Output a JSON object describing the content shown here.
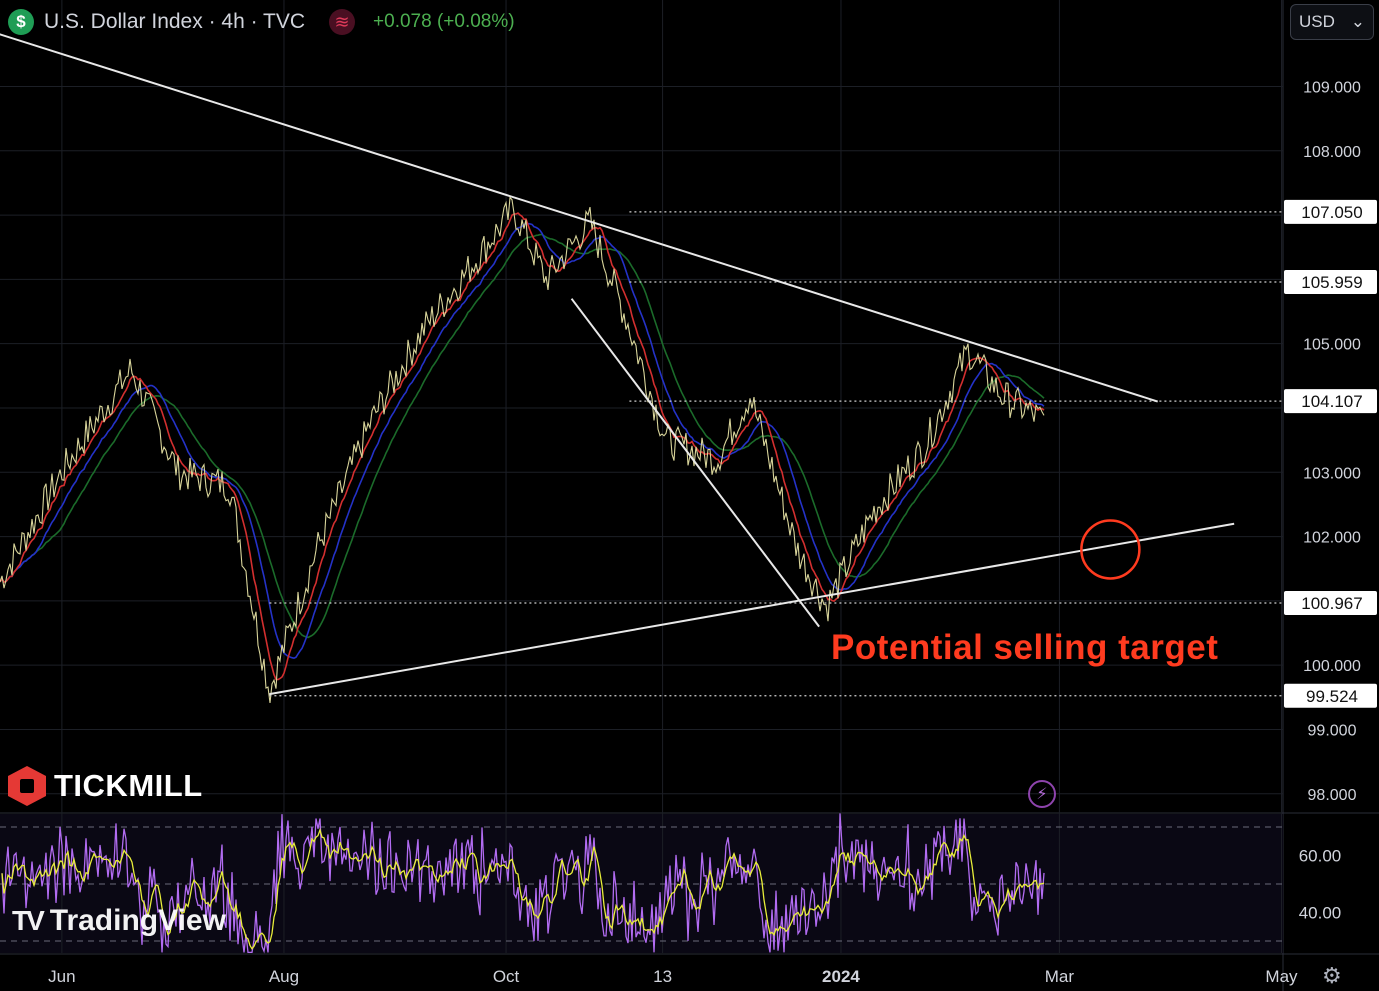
{
  "header": {
    "symbol_icon": "dollar-icon",
    "title": "U.S. Dollar Index · 4h · TVC",
    "indicator_icon": "wave-icon",
    "change": "+0.078 (+0.08%)"
  },
  "currency_select": {
    "value": "USD",
    "icon": "chevron-down-icon"
  },
  "branding": {
    "broker": "TICKMILL",
    "platform": "TradingView"
  },
  "annotation": "Potential selling target",
  "colors": {
    "background": "#000000",
    "grid": "#1c1f26",
    "price": "#d8d49a",
    "ma_fast": "#d32f2f",
    "ma_mid": "#2432c8",
    "ma_slow": "#1b6b2a",
    "trendline": "#e8e8e8",
    "annotation": "#ff3b1f",
    "rsi_line": "#b26cf2",
    "rsi_signal": "#e8ee3a",
    "up_change": "#4caf50"
  },
  "chart_data": [
    {
      "type": "line",
      "name": "price",
      "x_ticks": [
        "Jun",
        "Aug",
        "Oct",
        "13",
        "2024",
        "Mar",
        "May"
      ],
      "y_ticks": [
        "109.000",
        "108.000",
        "105.000",
        "103.000",
        "102.000",
        "100.000",
        "99.000",
        "98.000"
      ],
      "ylim": [
        97.8,
        109.8
      ],
      "grid": true,
      "x": [
        "2023-05-15",
        "2023-06-02",
        "2023-06-20",
        "2023-07-03",
        "2023-07-17",
        "2023-07-28",
        "2023-08-10",
        "2023-08-25",
        "2023-09-08",
        "2023-09-20",
        "2023-10-03",
        "2023-10-12",
        "2023-10-24",
        "2023-11-03",
        "2023-11-14",
        "2023-11-28",
        "2023-12-07",
        "2023-12-20",
        "2023-12-28",
        "2024-01-10",
        "2024-01-24",
        "2024-02-05",
        "2024-02-14",
        "2024-02-23",
        "2024-03-01",
        "2024-03-08"
      ],
      "price": [
        101.3,
        103.1,
        104.6,
        103.0,
        102.8,
        99.6,
        101.8,
        103.8,
        105.2,
        106.1,
        107.1,
        106.0,
        106.9,
        105.4,
        103.5,
        103.2,
        104.2,
        101.8,
        100.9,
        102.4,
        103.4,
        104.9,
        104.2,
        103.9,
        103.6,
        102.7
      ],
      "horizontal_levels": [
        {
          "label": "107.050",
          "value": 107.05
        },
        {
          "label": "105.959",
          "value": 105.959
        },
        {
          "label": "104.107",
          "value": 104.107
        },
        {
          "label": "100.967",
          "value": 100.967
        },
        {
          "label": "99.524",
          "value": 99.524
        }
      ],
      "trendlines": [
        {
          "from": [
            "2023-05-10",
            109.9
          ],
          "to": [
            "2024-03-28",
            104.1
          ]
        },
        {
          "from": [
            "2023-07-28",
            99.55
          ],
          "to": [
            "2024-04-18",
            102.2
          ]
        },
        {
          "from": [
            "2023-10-19",
            105.7
          ],
          "to": [
            "2023-12-26",
            100.6
          ]
        }
      ],
      "target_circle": {
        "x": "2024-03-15",
        "y": 101.8
      }
    },
    {
      "type": "line",
      "name": "rsi",
      "y_ticks": [
        "60.00",
        "40.00"
      ],
      "ylim": [
        26,
        76
      ],
      "levels": [
        70,
        50,
        30
      ]
    }
  ]
}
